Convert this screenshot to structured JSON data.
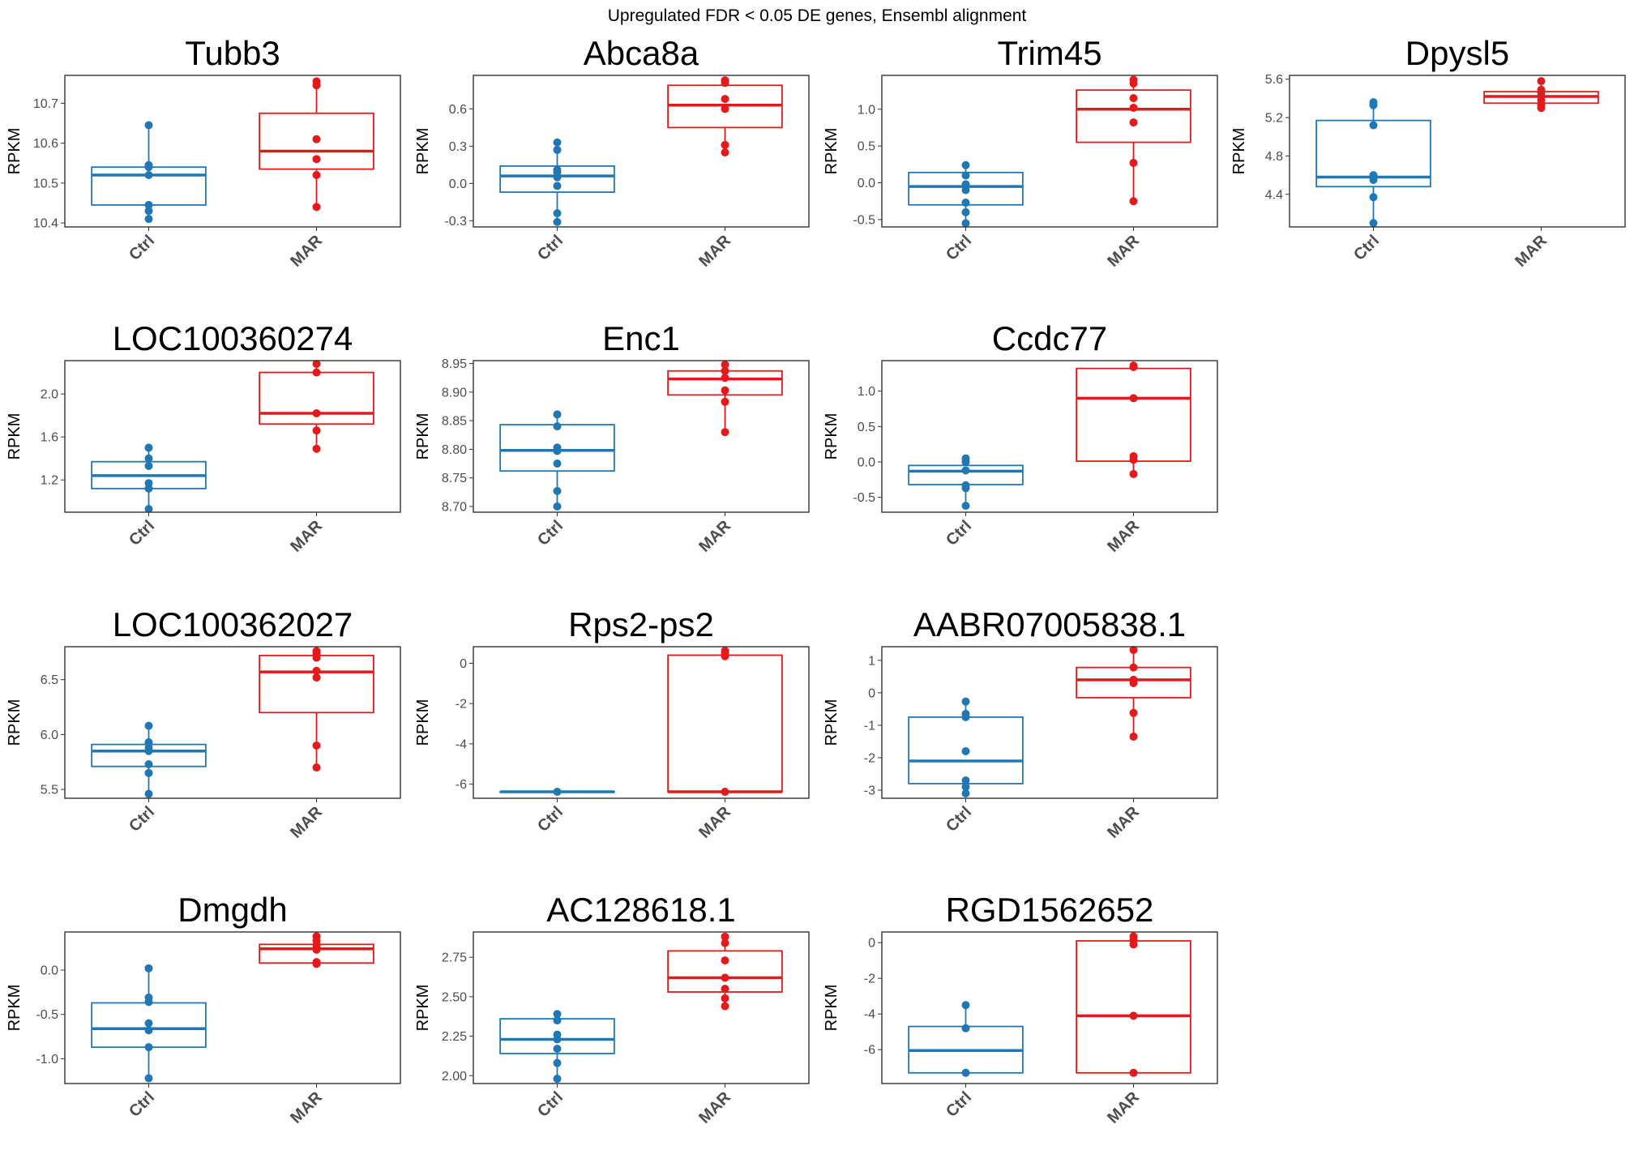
{
  "figure": {
    "title": "Upregulated FDR < 0.05 DE genes, Ensembl alignment"
  },
  "colors": {
    "Ctrl": "#1F78B4",
    "MAR": "#E31A1C"
  },
  "chart_data": [
    {
      "type": "box",
      "title": "Tubb3",
      "ylabel": "RPKM",
      "categories": [
        "Ctrl",
        "MAR"
      ],
      "ylim": [
        10.39,
        10.77
      ],
      "yticks": [
        10.4,
        10.5,
        10.6,
        10.7
      ],
      "ytick_labels": [
        "10.4",
        "10.5",
        "10.6",
        "10.7"
      ],
      "boxes": [
        {
          "group": "Ctrl",
          "min": 10.41,
          "q1": 10.445,
          "median": 10.52,
          "q3": 10.54,
          "max": 10.645,
          "points": [
            10.41,
            10.43,
            10.445,
            10.52,
            10.54,
            10.545,
            10.645
          ]
        },
        {
          "group": "MAR",
          "min": 10.44,
          "q1": 10.535,
          "median": 10.58,
          "q3": 10.675,
          "max": 10.755,
          "points": [
            10.44,
            10.52,
            10.56,
            10.61,
            10.745,
            10.755
          ]
        }
      ]
    },
    {
      "type": "box",
      "title": "Abca8a",
      "ylabel": "RPKM",
      "categories": [
        "Ctrl",
        "MAR"
      ],
      "ylim": [
        -0.35,
        0.87
      ],
      "yticks": [
        -0.3,
        0.0,
        0.3,
        0.6
      ],
      "ytick_labels": [
        "-0.3",
        "0.0",
        "0.3",
        "0.6"
      ],
      "boxes": [
        {
          "group": "Ctrl",
          "min": -0.31,
          "q1": -0.07,
          "median": 0.06,
          "q3": 0.14,
          "max": 0.33,
          "points": [
            -0.31,
            -0.24,
            -0.02,
            0.05,
            0.09,
            0.11,
            0.27,
            0.33
          ]
        },
        {
          "group": "MAR",
          "min": 0.25,
          "q1": 0.45,
          "median": 0.63,
          "q3": 0.79,
          "max": 0.83,
          "points": [
            0.25,
            0.31,
            0.6,
            0.68,
            0.81,
            0.83
          ]
        }
      ]
    },
    {
      "type": "box",
      "title": "Trim45",
      "ylabel": "RPKM",
      "categories": [
        "Ctrl",
        "MAR"
      ],
      "ylim": [
        -0.6,
        1.46
      ],
      "yticks": [
        -0.5,
        0.0,
        0.5,
        1.0
      ],
      "ytick_labels": [
        "-0.5",
        "0.0",
        "0.5",
        "1.0"
      ],
      "boxes": [
        {
          "group": "Ctrl",
          "min": -0.55,
          "q1": -0.3,
          "median": -0.05,
          "q3": 0.14,
          "max": 0.24,
          "points": [
            -0.55,
            -0.4,
            -0.27,
            -0.1,
            -0.02,
            0.1,
            0.24
          ]
        },
        {
          "group": "MAR",
          "min": -0.25,
          "q1": 0.55,
          "median": 1.0,
          "q3": 1.26,
          "max": 1.4,
          "points": [
            -0.25,
            0.27,
            0.82,
            1.02,
            1.15,
            1.35,
            1.4
          ]
        }
      ]
    },
    {
      "type": "box",
      "title": "Dpysl5",
      "ylabel": "RPKM",
      "categories": [
        "Ctrl",
        "MAR"
      ],
      "ylim": [
        4.06,
        5.64
      ],
      "yticks": [
        4.4,
        4.8,
        5.2,
        5.6
      ],
      "ytick_labels": [
        "4.4",
        "4.8",
        "5.2",
        "5.6"
      ],
      "boxes": [
        {
          "group": "Ctrl",
          "min": 4.1,
          "q1": 4.48,
          "median": 4.58,
          "q3": 5.17,
          "max": 5.36,
          "points": [
            4.1,
            4.37,
            4.55,
            4.6,
            5.12,
            5.33,
            5.36
          ]
        },
        {
          "group": "MAR",
          "min": 5.3,
          "q1": 5.35,
          "median": 5.42,
          "q3": 5.47,
          "max": 5.58,
          "points": [
            5.3,
            5.33,
            5.38,
            5.42,
            5.46,
            5.49,
            5.58
          ]
        }
      ]
    },
    {
      "type": "box",
      "title": "LOC100360274",
      "ylabel": "RPKM",
      "categories": [
        "Ctrl",
        "MAR"
      ],
      "ylim": [
        0.9,
        2.31
      ],
      "yticks": [
        1.2,
        1.6,
        2.0
      ],
      "ytick_labels": [
        "1.2",
        "1.6",
        "2.0"
      ],
      "boxes": [
        {
          "group": "Ctrl",
          "min": 0.93,
          "q1": 1.12,
          "median": 1.24,
          "q3": 1.37,
          "max": 1.5,
          "points": [
            0.93,
            1.12,
            1.17,
            1.33,
            1.4,
            1.5
          ]
        },
        {
          "group": "MAR",
          "min": 1.49,
          "q1": 1.72,
          "median": 1.82,
          "q3": 2.2,
          "max": 2.28,
          "points": [
            1.49,
            1.66,
            1.82,
            2.2,
            2.28
          ]
        }
      ]
    },
    {
      "type": "box",
      "title": "Enc1",
      "ylabel": "RPKM",
      "categories": [
        "Ctrl",
        "MAR"
      ],
      "ylim": [
        8.69,
        8.955
      ],
      "yticks": [
        8.7,
        8.75,
        8.8,
        8.85,
        8.9,
        8.95
      ],
      "ytick_labels": [
        "8.70",
        "8.75",
        "8.80",
        "8.85",
        "8.90",
        "8.95"
      ],
      "boxes": [
        {
          "group": "Ctrl",
          "min": 8.7,
          "q1": 8.762,
          "median": 8.798,
          "q3": 8.843,
          "max": 8.861,
          "points": [
            8.7,
            8.727,
            8.775,
            8.797,
            8.803,
            8.84,
            8.861
          ]
        },
        {
          "group": "MAR",
          "min": 8.83,
          "q1": 8.895,
          "median": 8.923,
          "q3": 8.937,
          "max": 8.948,
          "points": [
            8.83,
            8.883,
            8.903,
            8.925,
            8.937,
            8.948
          ]
        }
      ]
    },
    {
      "type": "box",
      "title": "Ccdc77",
      "ylabel": "RPKM",
      "categories": [
        "Ctrl",
        "MAR"
      ],
      "ylim": [
        -0.71,
        1.43
      ],
      "yticks": [
        -0.5,
        0.0,
        0.5,
        1.0
      ],
      "ytick_labels": [
        "-0.5",
        "0.0",
        "0.5",
        "1.0"
      ],
      "boxes": [
        {
          "group": "Ctrl",
          "min": -0.62,
          "q1": -0.32,
          "median": -0.13,
          "q3": -0.05,
          "max": 0.05,
          "points": [
            -0.62,
            -0.37,
            -0.33,
            -0.12,
            0.0,
            0.05
          ]
        },
        {
          "group": "MAR",
          "min": -0.17,
          "q1": 0.01,
          "median": 0.9,
          "q3": 1.32,
          "max": 1.36,
          "points": [
            -0.17,
            0.03,
            0.08,
            0.9,
            1.34,
            1.36
          ]
        }
      ]
    },
    {
      "type": "box",
      "title": "LOC100362027",
      "ylabel": "RPKM",
      "categories": [
        "Ctrl",
        "MAR"
      ],
      "ylim": [
        5.42,
        6.8
      ],
      "yticks": [
        5.5,
        6.0,
        6.5
      ],
      "ytick_labels": [
        "5.5",
        "6.0",
        "6.5"
      ],
      "boxes": [
        {
          "group": "Ctrl",
          "min": 5.46,
          "q1": 5.71,
          "median": 5.85,
          "q3": 5.91,
          "max": 6.08,
          "points": [
            5.46,
            5.65,
            5.73,
            5.85,
            5.88,
            5.93,
            6.08
          ]
        },
        {
          "group": "MAR",
          "min": 5.7,
          "q1": 6.2,
          "median": 6.57,
          "q3": 6.72,
          "max": 6.76,
          "points": [
            5.7,
            5.9,
            6.52,
            6.58,
            6.7,
            6.74,
            6.76
          ]
        }
      ]
    },
    {
      "type": "box",
      "title": "Rps2-ps2",
      "ylabel": "RPKM",
      "categories": [
        "Ctrl",
        "MAR"
      ],
      "ylim": [
        -6.7,
        0.82
      ],
      "yticks": [
        -6,
        -4,
        -2,
        0
      ],
      "ytick_labels": [
        "-6",
        "-4",
        "-2",
        "0"
      ],
      "boxes": [
        {
          "group": "Ctrl",
          "min": -6.38,
          "q1": -6.38,
          "median": -6.38,
          "q3": -6.38,
          "max": -6.38,
          "points": [
            -6.38
          ]
        },
        {
          "group": "MAR",
          "min": -6.38,
          "q1": -6.38,
          "median": -6.38,
          "q3": 0.4,
          "max": 0.62,
          "points": [
            -6.38,
            0.35,
            0.5,
            0.62
          ]
        }
      ]
    },
    {
      "type": "box",
      "title": "AABR07005838.1",
      "ylabel": "RPKM",
      "categories": [
        "Ctrl",
        "MAR"
      ],
      "ylim": [
        -3.25,
        1.42
      ],
      "yticks": [
        -3,
        -2,
        -1,
        0,
        1
      ],
      "ytick_labels": [
        "-3",
        "-2",
        "-1",
        "0",
        "1"
      ],
      "boxes": [
        {
          "group": "Ctrl",
          "min": -3.1,
          "q1": -2.8,
          "median": -2.1,
          "q3": -0.75,
          "max": -0.27,
          "points": [
            -3.1,
            -2.9,
            -2.7,
            -1.8,
            -0.75,
            -0.65,
            -0.27
          ]
        },
        {
          "group": "MAR",
          "min": -1.35,
          "q1": -0.15,
          "median": 0.4,
          "q3": 0.78,
          "max": 1.32,
          "points": [
            -1.35,
            -0.62,
            0.3,
            0.4,
            0.78,
            1.32
          ]
        }
      ]
    },
    {
      "type": "box",
      "title": "Dmgdh",
      "ylabel": "RPKM",
      "categories": [
        "Ctrl",
        "MAR"
      ],
      "ylim": [
        -1.28,
        0.43
      ],
      "yticks": [
        -1.0,
        -0.5,
        0.0
      ],
      "ytick_labels": [
        "-1.0",
        "-0.5",
        "0.0"
      ],
      "boxes": [
        {
          "group": "Ctrl",
          "min": -1.22,
          "q1": -0.87,
          "median": -0.66,
          "q3": -0.37,
          "max": 0.02,
          "points": [
            -1.22,
            -0.87,
            -0.68,
            -0.6,
            -0.36,
            -0.31,
            0.02
          ]
        },
        {
          "group": "MAR",
          "min": 0.07,
          "q1": 0.08,
          "median": 0.24,
          "q3": 0.29,
          "max": 0.38,
          "points": [
            0.07,
            0.09,
            0.23,
            0.28,
            0.33,
            0.38
          ]
        }
      ]
    },
    {
      "type": "box",
      "title": "AC128618.1",
      "ylabel": "RPKM",
      "categories": [
        "Ctrl",
        "MAR"
      ],
      "ylim": [
        1.95,
        2.91
      ],
      "yticks": [
        2.0,
        2.25,
        2.5,
        2.75
      ],
      "ytick_labels": [
        "2.00",
        "2.25",
        "2.50",
        "2.75"
      ],
      "boxes": [
        {
          "group": "Ctrl",
          "min": 1.98,
          "q1": 2.14,
          "median": 2.23,
          "q3": 2.36,
          "max": 2.39,
          "points": [
            1.98,
            2.08,
            2.17,
            2.23,
            2.26,
            2.35,
            2.39
          ]
        },
        {
          "group": "MAR",
          "min": 2.44,
          "q1": 2.53,
          "median": 2.62,
          "q3": 2.79,
          "max": 2.88,
          "points": [
            2.44,
            2.49,
            2.55,
            2.62,
            2.73,
            2.84,
            2.88
          ]
        }
      ]
    },
    {
      "type": "box",
      "title": "RGD1562652",
      "ylabel": "RPKM",
      "categories": [
        "Ctrl",
        "MAR"
      ],
      "ylim": [
        -7.9,
        0.6
      ],
      "yticks": [
        -6,
        -4,
        -2,
        0
      ],
      "ytick_labels": [
        "-6",
        "-4",
        "-2",
        "0"
      ],
      "boxes": [
        {
          "group": "Ctrl",
          "min": -7.3,
          "q1": -7.3,
          "median": -6.05,
          "q3": -4.7,
          "max": -3.5,
          "points": [
            -7.3,
            -4.8,
            -3.5
          ]
        },
        {
          "group": "MAR",
          "min": -7.3,
          "q1": -7.3,
          "median": -4.1,
          "q3": 0.1,
          "max": 0.35,
          "points": [
            -7.3,
            -4.1,
            -0.1,
            0.15,
            0.35
          ]
        }
      ]
    }
  ]
}
